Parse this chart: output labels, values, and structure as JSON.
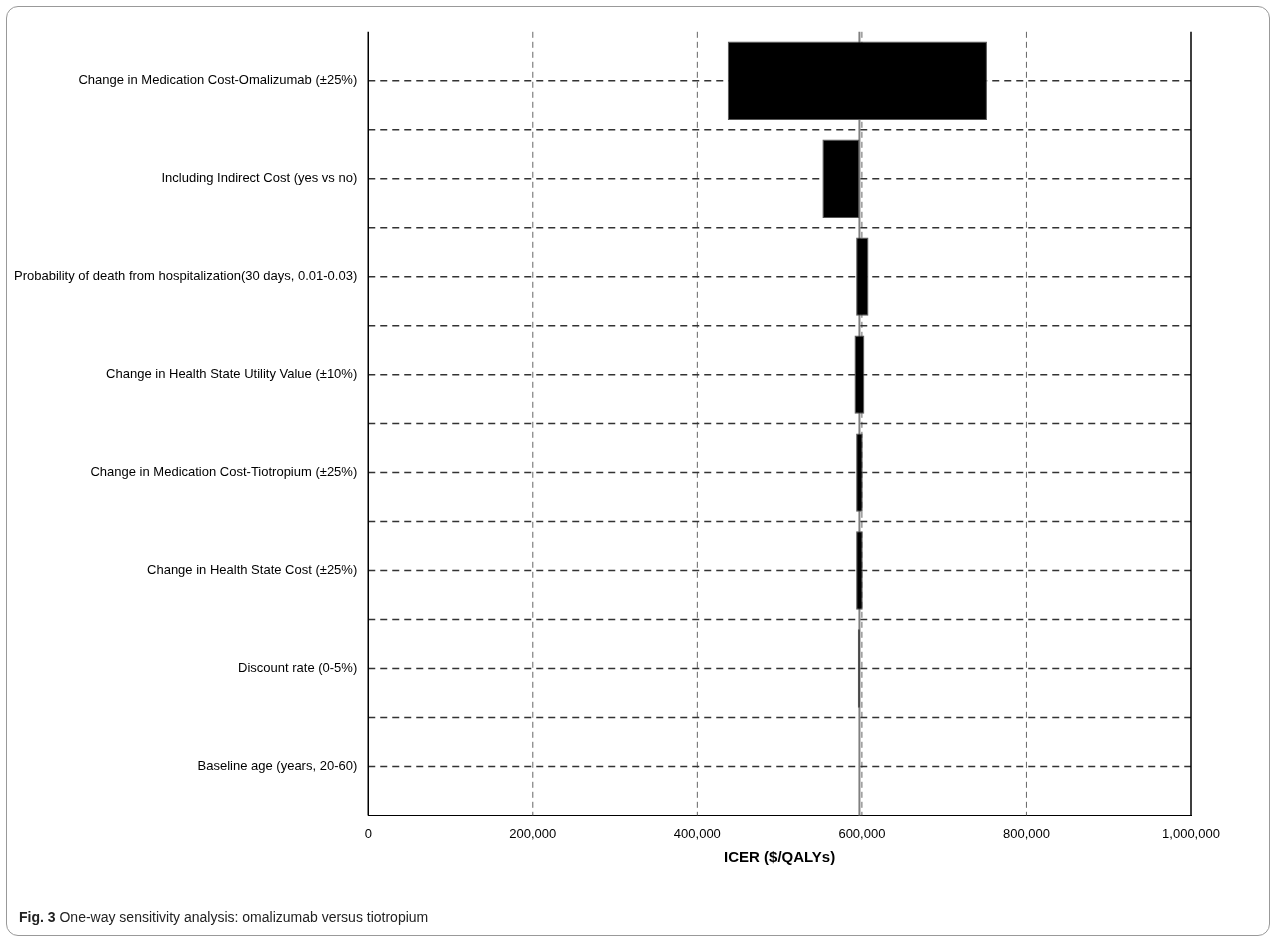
{
  "chart_data": {
    "type": "bar",
    "orientation": "horizontal",
    "xlabel": "ICER ($/QALYs)",
    "categories": [
      "Change in Medication Cost-Omalizumab (±25%)",
      "Including Indirect Cost (yes vs no)",
      "Probability of death from hospitalization(30 days, 0.01-0.03)",
      "Change in Health State Utility Value (±10%)",
      "Change in Medication Cost-Tiotropium (±25%)",
      "Change in Health State Cost (±25%)",
      "Discount rate (0-5%)",
      "Baseline age (years, 20-60)"
    ],
    "base": [
      437000,
      552000,
      593000,
      591000,
      593000,
      593000,
      595000,
      null
    ],
    "values": [
      315000,
      45000,
      15000,
      12000,
      8000,
      8000,
      3000,
      null
    ],
    "color": "#000000",
    "xlim": [
      0,
      1000000
    ],
    "xticks": [
      {
        "value": 0,
        "label": "0"
      },
      {
        "value": 200000,
        "label": "200,000"
      },
      {
        "value": 400000,
        "label": "400,000"
      },
      {
        "value": 600000,
        "label": "600,000"
      },
      {
        "value": 800000,
        "label": "800,000"
      },
      {
        "value": 1000000,
        "label": "1,000,000"
      }
    ],
    "ref_lines": [
      {
        "axis": "x",
        "value": 597000,
        "color": "#808080"
      }
    ],
    "grid": true,
    "legend": false,
    "annotations": [
      "Fig. 3 One-way sensitivity analysis: omalizumab versus tiotropium"
    ]
  }
}
